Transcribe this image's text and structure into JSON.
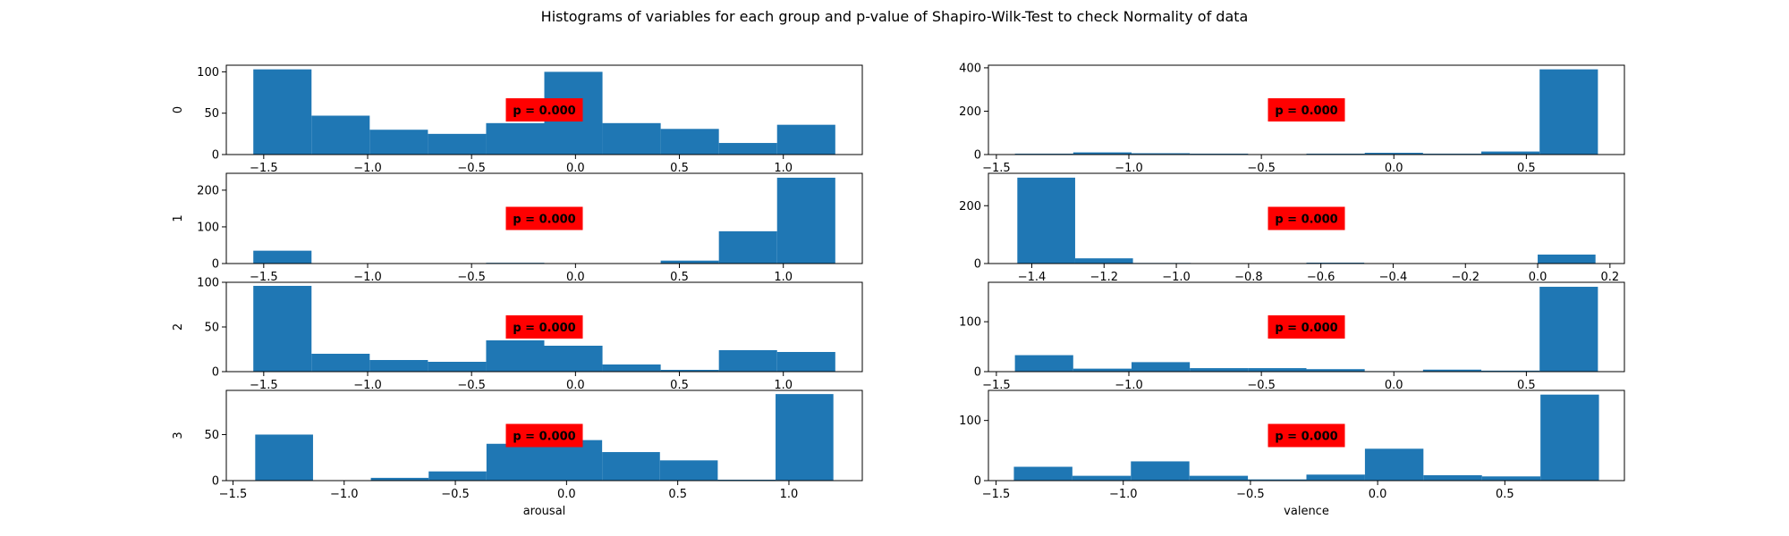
{
  "figure": {
    "title": "Histograms of variables for each group and p-value of Shapiro-Wilk-Test to check Normality of data",
    "bar_color": "#1f77b4",
    "annotation_color": "#ff0000"
  },
  "chart_data": [
    {
      "type": "bar",
      "row": 0,
      "col": 0,
      "ylabel": "0",
      "xlabel": "",
      "annotation": "p = 0.000",
      "bin_edges": [
        -1.55,
        -1.27,
        -0.99,
        -0.71,
        -0.43,
        -0.15,
        0.13,
        0.41,
        0.69,
        0.97,
        1.25
      ],
      "values": [
        103,
        47,
        30,
        25,
        38,
        100,
        38,
        31,
        14,
        36
      ],
      "xlim": [
        -1.68,
        1.38
      ],
      "ylim": [
        0,
        108
      ],
      "xticks": [
        -1.5,
        -1.0,
        -0.5,
        0.0,
        0.5,
        1.0
      ],
      "xticklabels": [
        "−1.5",
        "−1.0",
        "−0.5",
        "0.0",
        "0.5",
        "1.0"
      ],
      "yticks": [
        0,
        50,
        100
      ],
      "yticklabels": [
        "0",
        "50",
        "100"
      ]
    },
    {
      "type": "bar",
      "row": 0,
      "col": 1,
      "ylabel": "",
      "xlabel": "",
      "annotation": "p = 0.000",
      "bin_edges": [
        -1.43,
        -1.21,
        -0.99,
        -0.77,
        -0.55,
        -0.33,
        -0.11,
        0.11,
        0.33,
        0.55,
        0.77
      ],
      "values": [
        4,
        10,
        6,
        4,
        2,
        4,
        8,
        4,
        14,
        393
      ],
      "xlim": [
        -1.53,
        0.87
      ],
      "ylim": [
        0,
        412
      ],
      "xticks": [
        -1.5,
        -1.0,
        -0.5,
        0.0,
        0.5
      ],
      "xticklabels": [
        "−1.5",
        "−1.0",
        "−0.5",
        "0.0",
        "0.5"
      ],
      "yticks": [
        0,
        200,
        400
      ],
      "yticklabels": [
        "0",
        "200",
        "400"
      ]
    },
    {
      "type": "bar",
      "row": 1,
      "col": 0,
      "ylabel": "1",
      "xlabel": "",
      "annotation": "p = 0.000",
      "bin_edges": [
        -1.55,
        -1.27,
        -0.99,
        -0.71,
        -0.43,
        -0.15,
        0.13,
        0.41,
        0.69,
        0.97,
        1.25
      ],
      "values": [
        35,
        0,
        0,
        0,
        2,
        0,
        0,
        8,
        88,
        234
      ],
      "xlim": [
        -1.68,
        1.38
      ],
      "ylim": [
        0,
        246
      ],
      "xticks": [
        -1.5,
        -1.0,
        -0.5,
        0.0,
        0.5,
        1.0
      ],
      "xticklabels": [
        "−1.5",
        "−1.0",
        "−0.5",
        "0.0",
        "0.5",
        "1.0"
      ],
      "yticks": [
        0,
        100,
        200
      ],
      "yticklabels": [
        "0",
        "100",
        "200"
      ]
    },
    {
      "type": "bar",
      "row": 1,
      "col": 1,
      "ylabel": "",
      "xlabel": "",
      "annotation": "p = 0.000",
      "bin_edges": [
        -1.44,
        -1.28,
        -1.12,
        -0.96,
        -0.8,
        -0.64,
        -0.48,
        -0.32,
        -0.16,
        0.0,
        0.16
      ],
      "values": [
        297,
        18,
        2,
        0,
        0,
        3,
        0,
        0,
        0,
        31
      ],
      "xlim": [
        -1.52,
        0.24
      ],
      "ylim": [
        0,
        312
      ],
      "xticks": [
        -1.4,
        -1.2,
        -1.0,
        -0.8,
        -0.6,
        -0.4,
        -0.2,
        0.0,
        0.2
      ],
      "xticklabels": [
        "−1.4",
        "−1.2",
        "−1.0",
        "−0.8",
        "−0.6",
        "−0.4",
        "−0.2",
        "0.0",
        "0.2"
      ],
      "yticks": [
        0,
        200
      ],
      "yticklabels": [
        "0",
        "200"
      ]
    },
    {
      "type": "bar",
      "row": 2,
      "col": 0,
      "ylabel": "2",
      "xlabel": "",
      "annotation": "p = 0.000",
      "bin_edges": [
        -1.55,
        -1.27,
        -0.99,
        -0.71,
        -0.43,
        -0.15,
        0.13,
        0.41,
        0.69,
        0.97,
        1.25
      ],
      "values": [
        96,
        20,
        13,
        11,
        35,
        29,
        8,
        2,
        24,
        22
      ],
      "xlim": [
        -1.68,
        1.38
      ],
      "ylim": [
        0,
        100
      ],
      "xticks": [
        -1.5,
        -1.0,
        -0.5,
        0.0,
        0.5,
        1.0
      ],
      "xticklabels": [
        "−1.5",
        "−1.0",
        "−0.5",
        "0.0",
        "0.5",
        "1.0"
      ],
      "yticks": [
        0,
        50,
        100
      ],
      "yticklabels": [
        "0",
        "50",
        "100"
      ]
    },
    {
      "type": "bar",
      "row": 2,
      "col": 1,
      "ylabel": "",
      "xlabel": "",
      "annotation": "p = 0.000",
      "bin_edges": [
        -1.43,
        -1.21,
        -0.99,
        -0.77,
        -0.55,
        -0.33,
        -0.11,
        0.11,
        0.33,
        0.55,
        0.77
      ],
      "values": [
        33,
        6,
        19,
        7,
        7,
        5,
        1,
        4,
        2,
        170
      ],
      "xlim": [
        -1.53,
        0.87
      ],
      "ylim": [
        0,
        179
      ],
      "xticks": [
        -1.5,
        -1.0,
        -0.5,
        0.0,
        0.5
      ],
      "xticklabels": [
        "−1.5",
        "−1.0",
        "−0.5",
        "0.0",
        "0.5"
      ],
      "yticks": [
        0,
        100
      ],
      "yticklabels": [
        "0",
        "100"
      ]
    },
    {
      "type": "bar",
      "row": 3,
      "col": 0,
      "ylabel": "3",
      "xlabel": "arousal",
      "annotation": "p = 0.000",
      "bin_edges": [
        -1.4,
        -1.14,
        -0.88,
        -0.62,
        -0.36,
        -0.1,
        0.16,
        0.42,
        0.68,
        0.94,
        1.2
      ],
      "values": [
        50,
        0,
        3,
        10,
        40,
        44,
        31,
        22,
        1,
        94
      ],
      "xlim": [
        -1.53,
        1.33
      ],
      "ylim": [
        0,
        98
      ],
      "xticks": [
        -1.5,
        -1.0,
        -0.5,
        0.0,
        0.5,
        1.0
      ],
      "xticklabels": [
        "−1.5",
        "−1.0",
        "−0.5",
        "0.0",
        "0.5",
        "1.0"
      ],
      "yticks": [
        0,
        50
      ],
      "yticklabels": [
        "0",
        "50"
      ]
    },
    {
      "type": "bar",
      "row": 3,
      "col": 1,
      "ylabel": "",
      "xlabel": "valence",
      "annotation": "p = 0.000",
      "bin_edges": [
        -1.43,
        -1.2,
        -0.97,
        -0.74,
        -0.51,
        -0.28,
        -0.05,
        0.18,
        0.41,
        0.64,
        0.87
      ],
      "values": [
        23,
        8,
        32,
        8,
        2,
        10,
        53,
        9,
        7,
        143
      ],
      "xlim": [
        -1.53,
        0.97
      ],
      "ylim": [
        0,
        150
      ],
      "xticks": [
        -1.5,
        -1.0,
        -0.5,
        0.0,
        0.5
      ],
      "xticklabels": [
        "−1.5",
        "−1.0",
        "−0.5",
        "0.0",
        "0.5"
      ],
      "yticks": [
        0,
        100
      ],
      "yticklabels": [
        "0",
        "100"
      ]
    }
  ]
}
